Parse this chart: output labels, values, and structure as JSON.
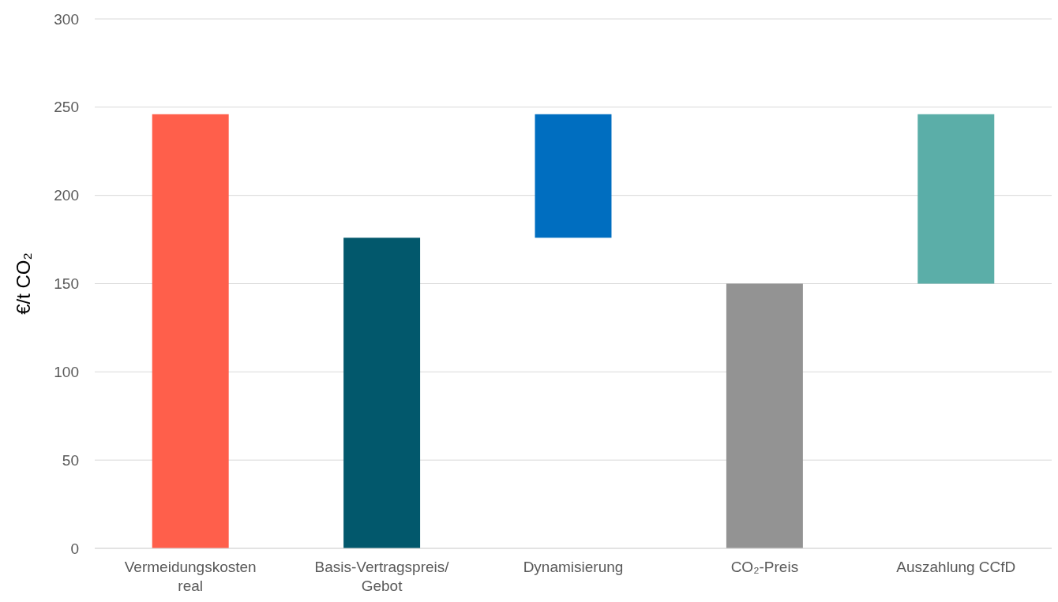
{
  "chart_data": {
    "type": "bar",
    "ylabel": "€/t CO₂",
    "categories": [
      "Vermeidungskosten real",
      "Basis-Vertragspreis/ Gebot",
      "Dynamisierung",
      "CO₂-Preis",
      "Auszahlung CCfD"
    ],
    "values": [
      246,
      176,
      70,
      150,
      96
    ],
    "base": [
      0,
      0,
      176,
      0,
      150
    ],
    "colors": [
      "#ff5f4b",
      "#02586c",
      "#006ec0",
      "#939393",
      "#5baea8"
    ],
    "ylim": [
      0,
      300
    ],
    "yticks": [
      0,
      50,
      100,
      150,
      200,
      250,
      300
    ],
    "grid": "y"
  }
}
